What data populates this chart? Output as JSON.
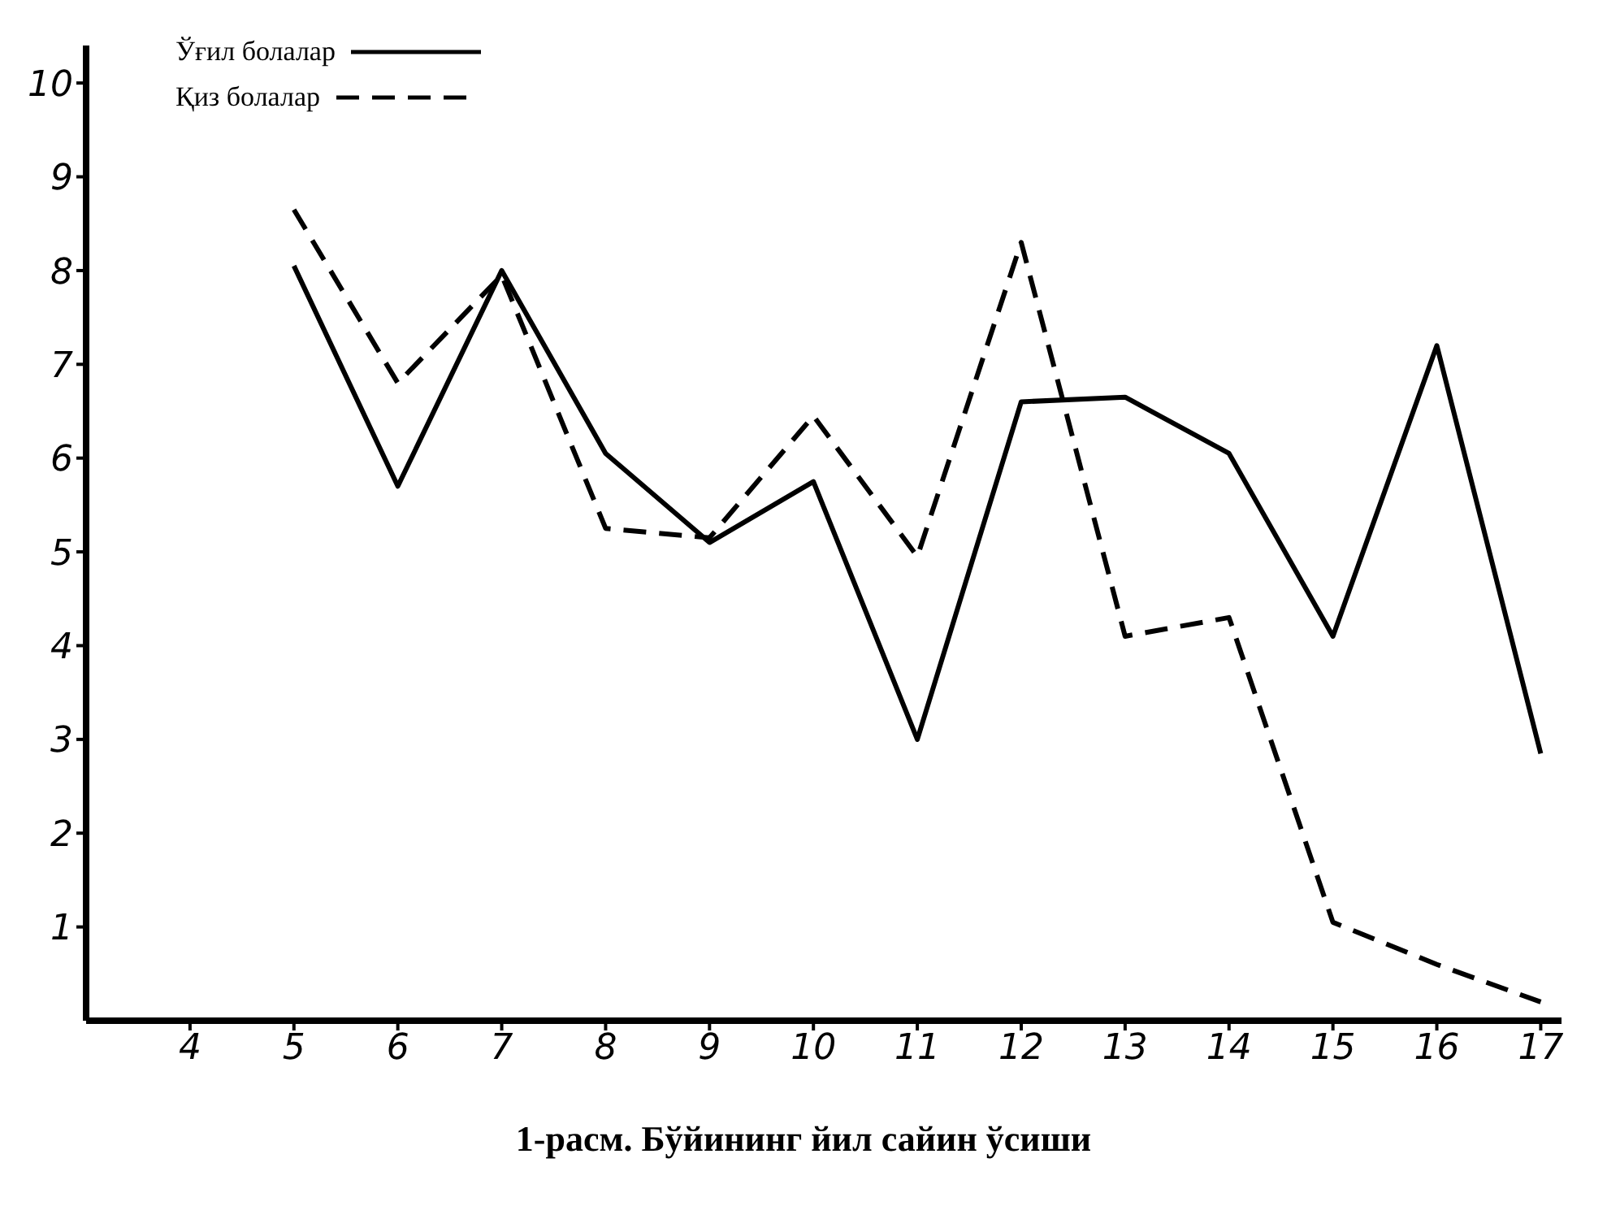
{
  "chart_data": {
    "type": "line",
    "title": "1-расм. Бўйининг йил сайин ўсиши",
    "x": [
      5,
      6,
      7,
      8,
      9,
      10,
      11,
      12,
      13,
      14,
      15,
      16,
      17
    ],
    "series": [
      {
        "name": "Ўғил болалар",
        "color": "#000000",
        "line_style": "solid",
        "values": [
          8.05,
          5.7,
          8.0,
          6.05,
          5.1,
          5.75,
          3.0,
          6.6,
          6.65,
          6.05,
          4.1,
          7.2,
          2.85
        ]
      },
      {
        "name": "Қиз болалар",
        "color": "#000000",
        "line_style": "dashed",
        "values": [
          8.65,
          6.8,
          7.95,
          5.25,
          5.15,
          6.45,
          4.95,
          8.3,
          4.1,
          4.3,
          1.05,
          0.6,
          0.2
        ]
      }
    ],
    "xlim": [
      3,
      17.2
    ],
    "xticks": [
      4,
      5,
      6,
      7,
      8,
      9,
      10,
      11,
      12,
      13,
      14,
      15,
      16,
      17
    ],
    "ylim": [
      0,
      10.4
    ],
    "yticks": [
      1,
      2,
      3,
      4,
      5,
      6,
      7,
      8,
      9,
      10
    ],
    "grid": false,
    "legend": "top left",
    "marker": "none"
  }
}
